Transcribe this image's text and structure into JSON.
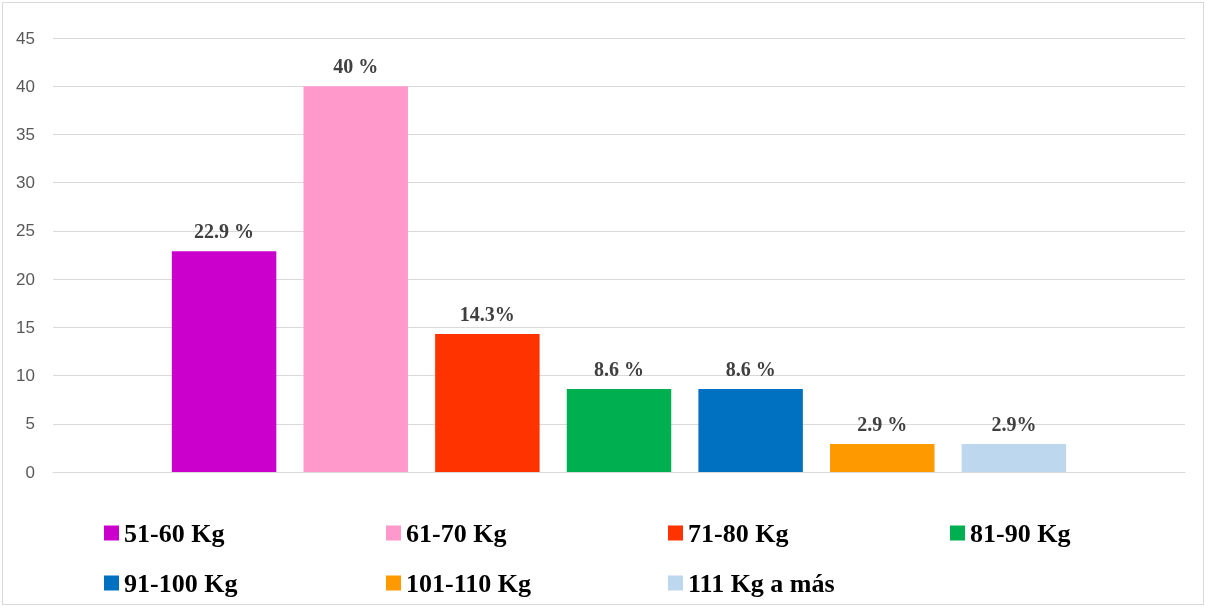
{
  "chart_data": {
    "type": "bar",
    "categories": [
      null
    ],
    "series": [
      {
        "name": "51-60 Kg",
        "color": "#cc00cc",
        "values": [
          22.9
        ],
        "value_labels": [
          "22.9 %"
        ]
      },
      {
        "name": "61-70 Kg",
        "color": "#ff99cc",
        "values": [
          40
        ],
        "value_labels": [
          "40 %"
        ]
      },
      {
        "name": "71-80 Kg",
        "color": "#ff3300",
        "values": [
          14.3
        ],
        "value_labels": [
          "14.3%"
        ]
      },
      {
        "name": "81-90 Kg",
        "color": "#00b050",
        "values": [
          8.6
        ],
        "value_labels": [
          "8.6 %"
        ]
      },
      {
        "name": "91-100 Kg",
        "color": "#0070c0",
        "values": [
          8.6
        ],
        "value_labels": [
          "8.6 %"
        ]
      },
      {
        "name": "101-110 Kg",
        "color": "#ff9900",
        "values": [
          2.9
        ],
        "value_labels": [
          "2.9 %"
        ]
      },
      {
        "name": "111 Kg a más",
        "color": "#bdd7ee",
        "values": [
          2.9
        ],
        "value_labels": [
          "2.9%"
        ]
      }
    ],
    "ylim": [
      0,
      45
    ],
    "yticks": [
      0,
      5,
      10,
      15,
      20,
      25,
      30,
      35,
      40,
      45
    ],
    "grid": "y",
    "legend": "bottom"
  }
}
